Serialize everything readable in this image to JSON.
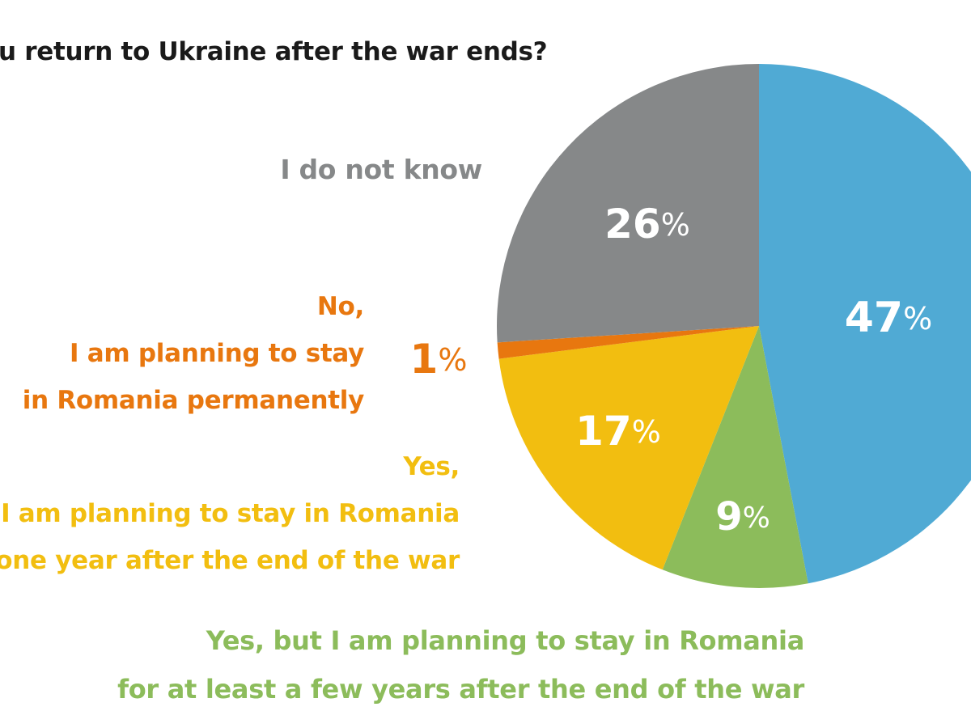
{
  "title": "u return to Ukraine after the war ends?",
  "chart_data": {
    "type": "pie",
    "title": "u return to Ukraine after the war ends?",
    "unit": "%",
    "slices": [
      {
        "key": "a",
        "value": 47,
        "label": "47",
        "color": "#50aad4",
        "legend_lines": []
      },
      {
        "key": "b",
        "value": 9,
        "label": "9",
        "color": "#8cbc5b",
        "legend_lines": [
          "Yes, but I am planning to stay in Romania",
          "for at least a few years after the end of the war"
        ]
      },
      {
        "key": "c",
        "value": 17,
        "label": "17",
        "color": "#f2be10",
        "legend_lines": [
          "Yes,",
          "I am planning to stay in Romania",
          "one year after the end of the war"
        ]
      },
      {
        "key": "d",
        "value": 1,
        "label": "1",
        "color": "#e8770f",
        "legend_lines": [
          "No,",
          "I am planning to stay",
          "in Romania permanently"
        ]
      },
      {
        "key": "e",
        "value": 26,
        "label": "26",
        "color": "#868889",
        "legend_lines": [
          "I do not know"
        ]
      }
    ]
  }
}
